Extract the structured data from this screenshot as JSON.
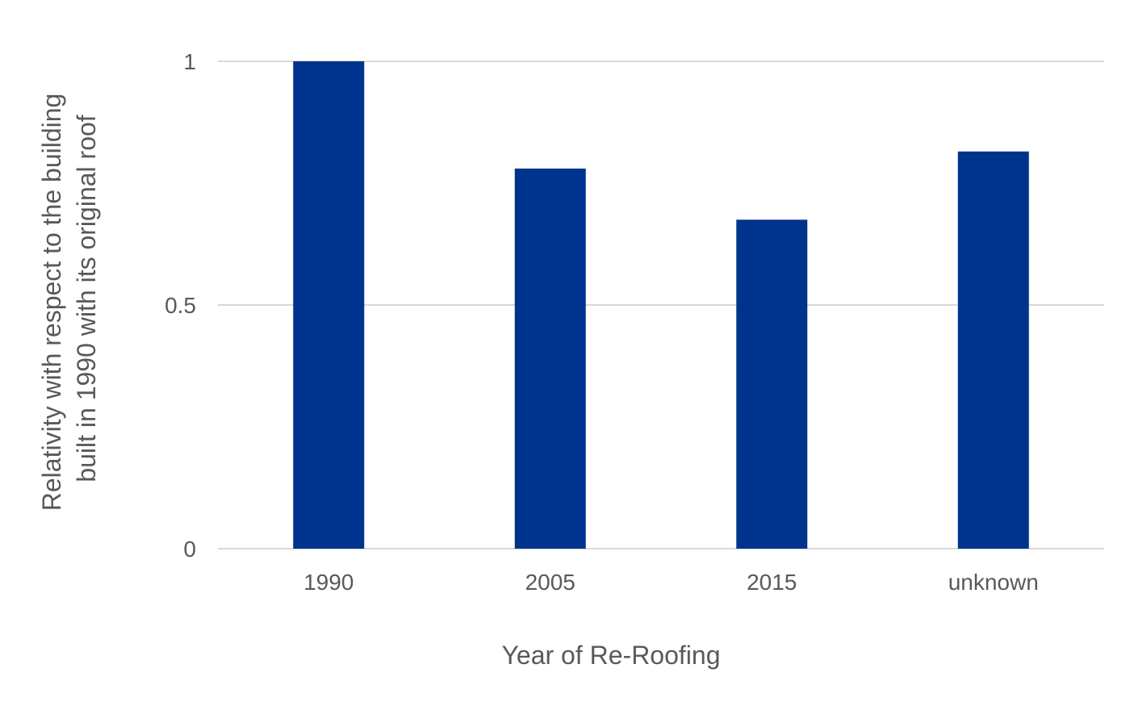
{
  "chart_data": {
    "type": "bar",
    "categories": [
      "1990",
      "2005",
      "2015",
      "unknown"
    ],
    "values": [
      1.0,
      0.78,
      0.675,
      0.815
    ],
    "title": "",
    "xlabel": "Year of Re-Roofing",
    "ylabel_lines": [
      "Relativity with respect to the building",
      "built in 1990 with its original roof"
    ],
    "ylim": [
      0,
      1
    ],
    "yticks": [
      0,
      0.5,
      1
    ],
    "ytick_labels": [
      "0",
      "0.5",
      "1"
    ],
    "bar_color": "#00338d",
    "gridline_color": "#d9d9d9",
    "grid": true,
    "legend": "none"
  }
}
